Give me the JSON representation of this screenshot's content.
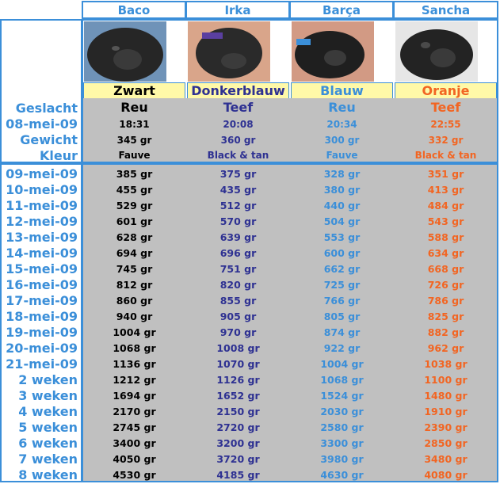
{
  "colors": {
    "zwart": "#000000",
    "donkerblauw": "#2e3192",
    "blauw": "#3b8fd9",
    "oranje": "#f26522",
    "border": "#3b8fd9",
    "grey": "#c0c0c0",
    "yellow": "#fff9a8"
  },
  "puppies": [
    {
      "name": "Baco",
      "collar": "Zwart",
      "geslacht": "Reu",
      "birth_time": "18:31",
      "birth_weight": "345 gr",
      "kleur": "Fauve"
    },
    {
      "name": "Irka",
      "collar": "Donkerblauw",
      "geslacht": "Teef",
      "birth_time": "20:08",
      "birth_weight": "360 gr",
      "kleur": "Black & tan"
    },
    {
      "name": "Barça",
      "collar": "Blauw",
      "geslacht": "Reu",
      "birth_time": "20:34",
      "birth_weight": "300 gr",
      "kleur": "Fauve"
    },
    {
      "name": "Sancha",
      "collar": "Oranje",
      "geslacht": "Teef",
      "birth_time": "22:55",
      "birth_weight": "332 gr",
      "kleur": "Black & tan"
    }
  ],
  "labels": {
    "geslacht": "Geslacht",
    "birth_date": "08-mei-09",
    "gewicht": "Gewicht",
    "kleur": "Kleur"
  },
  "weights": [
    {
      "date": "09-mei-09",
      "values": [
        "385 gr",
        "375 gr",
        "328 gr",
        "351 gr"
      ]
    },
    {
      "date": "10-mei-09",
      "values": [
        "455 gr",
        "435 gr",
        "380 gr",
        "413 gr"
      ]
    },
    {
      "date": "11-mei-09",
      "values": [
        "529 gr",
        "512 gr",
        "440 gr",
        "484 gr"
      ]
    },
    {
      "date": "12-mei-09",
      "values": [
        "601 gr",
        "570 gr",
        "504 gr",
        "543 gr"
      ]
    },
    {
      "date": "13-mei-09",
      "values": [
        "628 gr",
        "639 gr",
        "553 gr",
        "588 gr"
      ]
    },
    {
      "date": "14-mei-09",
      "values": [
        "694 gr",
        "696 gr",
        "600 gr",
        "634 gr"
      ]
    },
    {
      "date": "15-mei-09",
      "values": [
        "745 gr",
        "751 gr",
        "662 gr",
        "668 gr"
      ]
    },
    {
      "date": "16-mei-09",
      "values": [
        "812 gr",
        "820 gr",
        "725 gr",
        "726 gr"
      ]
    },
    {
      "date": "17-mei-09",
      "values": [
        "860 gr",
        "855 gr",
        "766 gr",
        "786 gr"
      ]
    },
    {
      "date": "18-mei-09",
      "values": [
        "940 gr",
        "905 gr",
        "805 gr",
        "825 gr"
      ]
    },
    {
      "date": "19-mei-09",
      "values": [
        "1004 gr",
        "970 gr",
        "874 gr",
        "882 gr"
      ]
    },
    {
      "date": "20-mei-09",
      "values": [
        "1068 gr",
        "1008 gr",
        "922 gr",
        "962 gr"
      ]
    },
    {
      "date": "21-mei-09",
      "values": [
        "1136 gr",
        "1070 gr",
        "1004 gr",
        "1038 gr"
      ]
    },
    {
      "date": "2 weken",
      "values": [
        "1212 gr",
        "1126 gr",
        "1068 gr",
        "1100 gr"
      ]
    },
    {
      "date": "3 weken",
      "values": [
        "1694 gr",
        "1652 gr",
        "1524 gr",
        "1480 gr"
      ]
    },
    {
      "date": "4 weken",
      "values": [
        "2170 gr",
        "2150 gr",
        "2030 gr",
        "1910 gr"
      ]
    },
    {
      "date": "5 weken",
      "values": [
        "2745 gr",
        "2720 gr",
        "2580 gr",
        "2390 gr"
      ]
    },
    {
      "date": "6 weken",
      "values": [
        "3400 gr",
        "3200 gr",
        "3300 gr",
        "2850 gr"
      ]
    },
    {
      "date": "7 weken",
      "values": [
        "4050 gr",
        "3720 gr",
        "3980 gr",
        "3480 gr"
      ]
    },
    {
      "date": "8 weken",
      "values": [
        "4530 gr",
        "4185 gr",
        "4630 gr",
        "4080 gr"
      ]
    }
  ]
}
